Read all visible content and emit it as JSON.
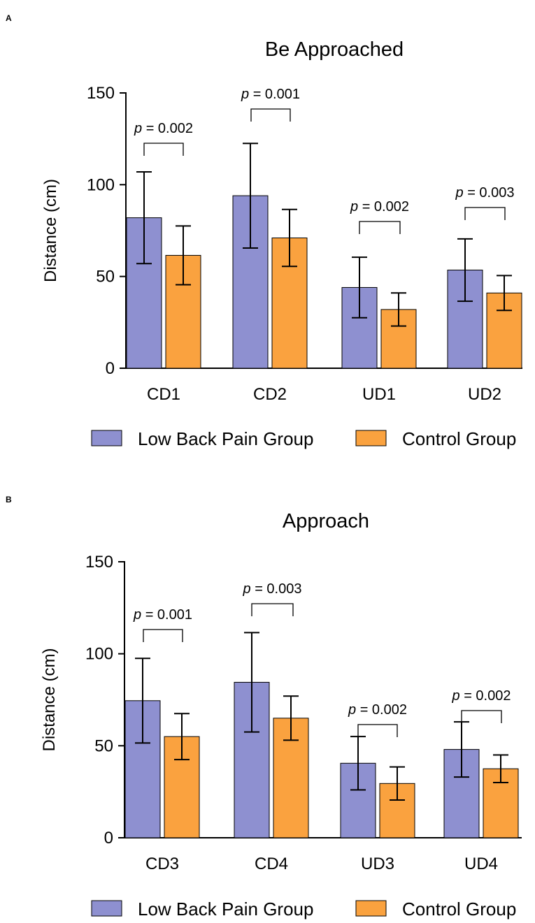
{
  "chart_data": [
    {
      "panel_label": "A",
      "type": "bar",
      "title": "Be Approached",
      "ylabel": "Distance (cm)",
      "ylim": [
        0,
        150
      ],
      "yticks": [
        "0",
        "50",
        "100",
        "150"
      ],
      "categories": [
        "CD1",
        "CD2",
        "UD1",
        "UD2"
      ],
      "series": [
        {
          "name": "Low Back Pain Group",
          "color": "#8E90D0",
          "values": [
            82,
            94,
            44,
            53.5
          ],
          "errors": [
            25,
            28.5,
            16.5,
            17
          ]
        },
        {
          "name": "Control Group",
          "color": "#FAA23F",
          "values": [
            61.5,
            71,
            32,
            41
          ],
          "errors": [
            16,
            15.5,
            9,
            9.5
          ]
        }
      ],
      "annotations": [
        {
          "prefix": "p",
          "text": " = 0.002"
        },
        {
          "prefix": "p",
          "text": " = 0.001"
        },
        {
          "prefix": "p",
          "text": " = 0.002"
        },
        {
          "prefix": "p",
          "text": " = 0.003"
        }
      ],
      "legend": [
        "Low Back Pain Group",
        "Control Group"
      ]
    },
    {
      "panel_label": "B",
      "type": "bar",
      "title": "Approach",
      "ylabel": "Distance (cm)",
      "ylim": [
        0,
        150
      ],
      "yticks": [
        "0",
        "50",
        "100",
        "150"
      ],
      "categories": [
        "CD3",
        "CD4",
        "UD3",
        "UD4"
      ],
      "series": [
        {
          "name": "Low Back Pain Group",
          "color": "#8E90D0",
          "values": [
            74.5,
            84.5,
            40.5,
            48
          ],
          "errors": [
            23,
            27,
            14.5,
            15
          ]
        },
        {
          "name": "Control Group",
          "color": "#FAA23F",
          "values": [
            55,
            65,
            29.5,
            37.5
          ],
          "errors": [
            12.5,
            12,
            9,
            7.5
          ]
        }
      ],
      "annotations": [
        {
          "prefix": "p",
          "text": " = 0.001"
        },
        {
          "prefix": "p",
          "text": " = 0.003"
        },
        {
          "prefix": "p",
          "text": " = 0.002"
        },
        {
          "prefix": "p",
          "text": " = 0.002"
        }
      ],
      "legend": [
        "Low Back Pain Group",
        "Control Group"
      ]
    }
  ]
}
